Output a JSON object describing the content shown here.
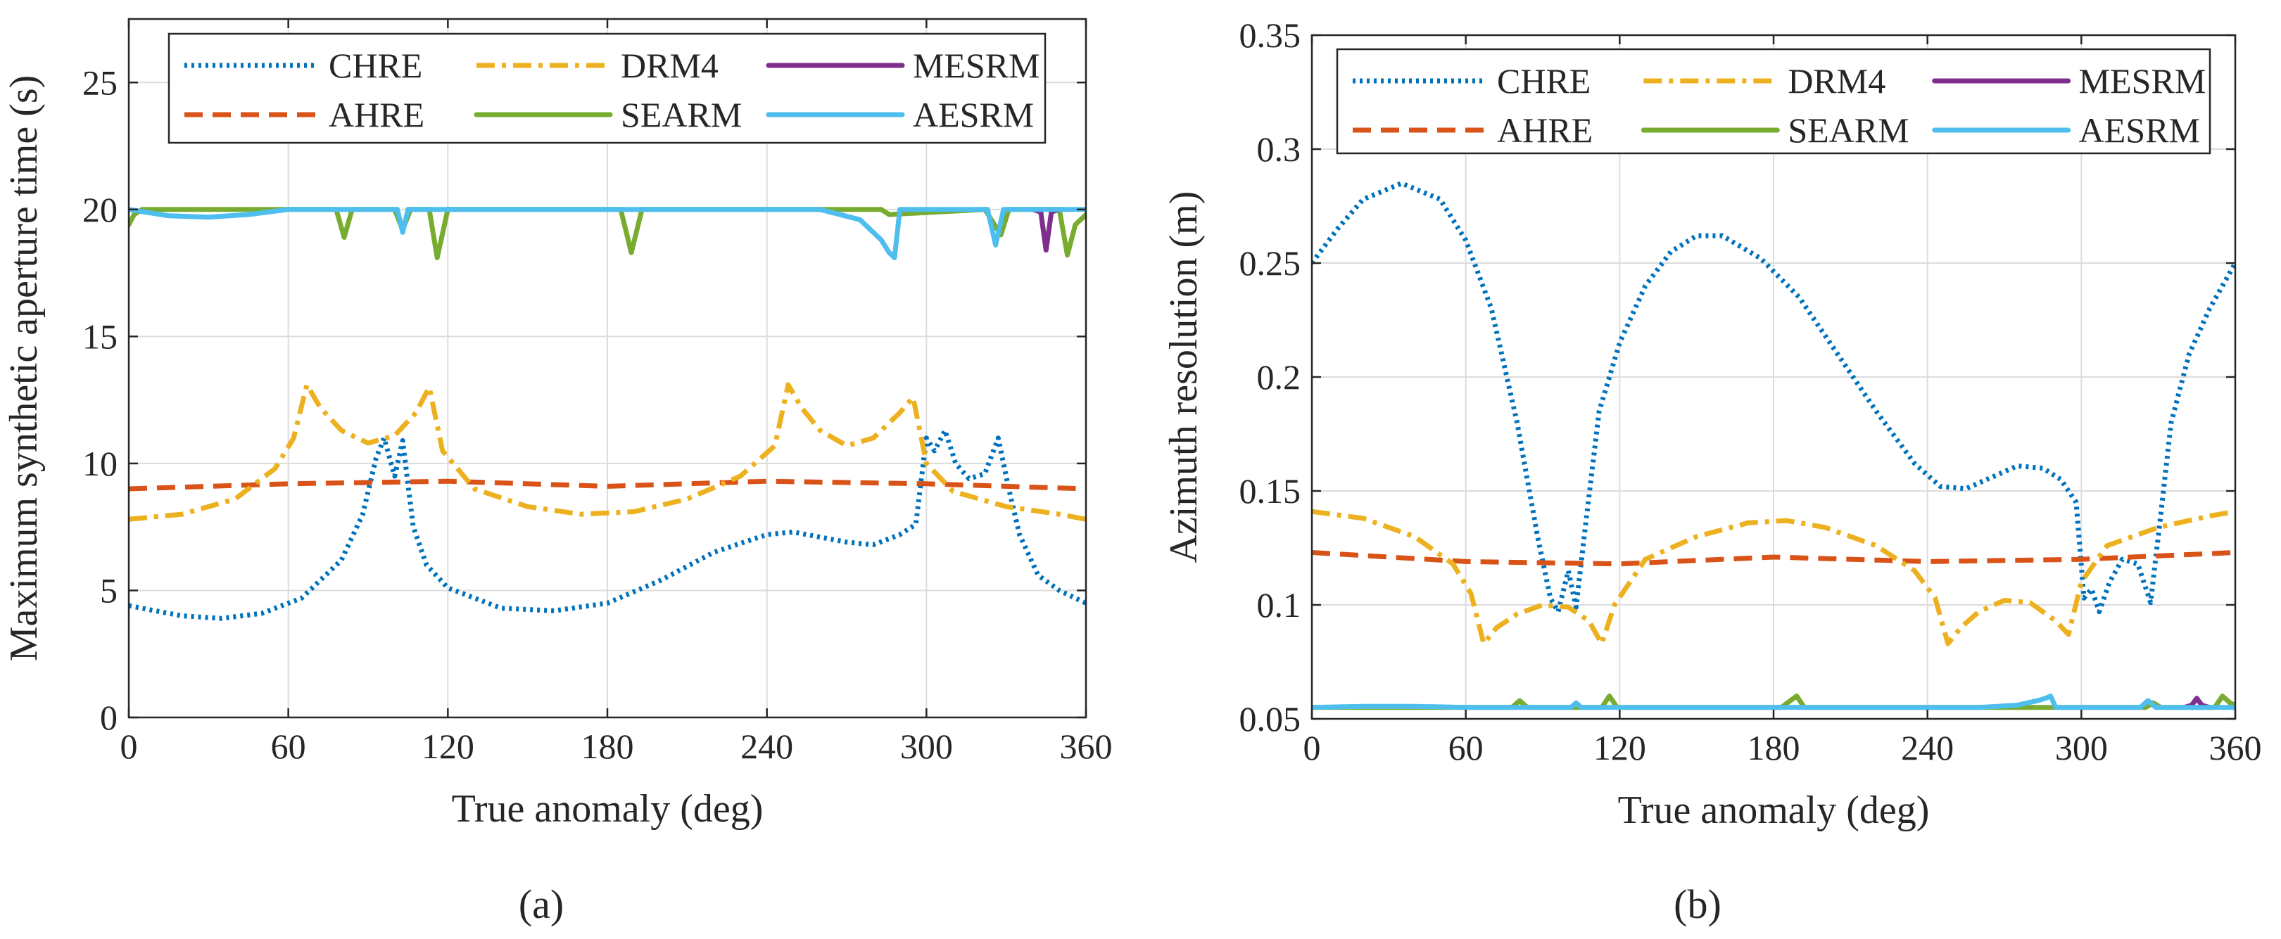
{
  "chart_data": [
    {
      "panel_label": "(a)",
      "type": "line",
      "title": "",
      "xlabel": "True anomaly (deg)",
      "ylabel": "Maximum synthetic aperture time (s)",
      "xlim": [
        0,
        360
      ],
      "ylim": [
        0,
        27.5
      ],
      "xticks": [
        0,
        60,
        120,
        180,
        240,
        300,
        360
      ],
      "yticks": [
        0,
        5,
        10,
        15,
        20,
        25
      ],
      "xtick_labels": [
        "0",
        "60",
        "120",
        "180",
        "240",
        "300",
        "360"
      ],
      "ytick_labels": [
        "0",
        "5",
        "10",
        "15",
        "20",
        "25"
      ],
      "grid": true,
      "legend_position": "top",
      "series": [
        {
          "name": "CHRE",
          "color": "#0072BD",
          "style": "dotted",
          "x": [
            0,
            20,
            35,
            50,
            65,
            80,
            88,
            93,
            96,
            100,
            103,
            107,
            112,
            120,
            140,
            160,
            180,
            200,
            220,
            240,
            250,
            260,
            270,
            280,
            290,
            296,
            300,
            303,
            307,
            311,
            316,
            322,
            327,
            331,
            335,
            342,
            350,
            360
          ],
          "y": [
            4.4,
            4.0,
            3.9,
            4.1,
            4.7,
            6.2,
            8.0,
            10.2,
            11.0,
            9.5,
            10.9,
            7.5,
            6.0,
            5.1,
            4.3,
            4.2,
            4.5,
            5.4,
            6.5,
            7.2,
            7.3,
            7.1,
            6.9,
            6.8,
            7.2,
            7.6,
            11.0,
            10.5,
            11.3,
            10.0,
            9.4,
            9.6,
            11.0,
            9.0,
            7.2,
            5.6,
            5.0,
            4.5
          ]
        },
        {
          "name": "AHRE",
          "color": "#D95319",
          "style": "dashed",
          "x": [
            0,
            60,
            120,
            180,
            240,
            300,
            360
          ],
          "y": [
            9.0,
            9.2,
            9.3,
            9.1,
            9.3,
            9.2,
            9.0
          ]
        },
        {
          "name": "DRM4",
          "color": "#EDB120",
          "style": "dashdot",
          "x": [
            0,
            20,
            40,
            55,
            62,
            67,
            72,
            80,
            90,
            100,
            108,
            113,
            118,
            130,
            150,
            170,
            190,
            210,
            230,
            243,
            248,
            253,
            260,
            270,
            280,
            290,
            295,
            300,
            310,
            330,
            350,
            360
          ],
          "y": [
            7.8,
            8.0,
            8.6,
            9.8,
            11.0,
            13.1,
            12.2,
            11.3,
            10.8,
            11.1,
            12.0,
            13.0,
            10.5,
            9.0,
            8.3,
            8.0,
            8.1,
            8.6,
            9.5,
            10.7,
            13.1,
            12.2,
            11.3,
            10.7,
            11.0,
            12.0,
            12.6,
            10.0,
            8.9,
            8.3,
            8.0,
            7.8
          ]
        },
        {
          "name": "SEARM",
          "color": "#77AC30",
          "style": "solid",
          "x": [
            0,
            2,
            5,
            30,
            55,
            60,
            78,
            81,
            84,
            100,
            103,
            106,
            113,
            116,
            120,
            185,
            189,
            193,
            270,
            283,
            286,
            322,
            328,
            331,
            350,
            353,
            356,
            360
          ],
          "y": [
            19.4,
            19.8,
            20.0,
            20.0,
            20.0,
            20.0,
            20.0,
            18.9,
            20.0,
            20.0,
            19.2,
            20.0,
            20.0,
            18.1,
            20.0,
            20.0,
            18.3,
            20.0,
            20.0,
            20.0,
            19.8,
            20.0,
            19.0,
            20.0,
            20.0,
            18.2,
            19.4,
            19.8
          ]
        },
        {
          "name": "MESRM",
          "color": "#7E2F8E",
          "style": "solid",
          "x": [
            340,
            343,
            345,
            347,
            350
          ],
          "y": [
            20.0,
            19.9,
            18.4,
            19.9,
            20.0
          ]
        },
        {
          "name": "AESRM",
          "color": "#4DBEEE",
          "style": "solid",
          "x": [
            0,
            15,
            30,
            45,
            60,
            101,
            103,
            105,
            260,
            275,
            283,
            286,
            288,
            290,
            323,
            326,
            329,
            360
          ],
          "y": [
            20.0,
            19.75,
            19.7,
            19.8,
            20.0,
            20.0,
            19.1,
            20.0,
            20.0,
            19.6,
            18.8,
            18.3,
            18.1,
            20.0,
            20.0,
            18.6,
            20.0,
            20.0
          ]
        }
      ]
    },
    {
      "panel_label": "(b)",
      "type": "line",
      "title": "",
      "xlabel": "True anomaly (deg)",
      "ylabel": "Azimuth resolution (m)",
      "xlim": [
        0,
        360
      ],
      "ylim": [
        0.05,
        0.35
      ],
      "xticks": [
        0,
        60,
        120,
        180,
        240,
        300,
        360
      ],
      "yticks": [
        0.05,
        0.1,
        0.15,
        0.2,
        0.25,
        0.3,
        0.35
      ],
      "xtick_labels": [
        "0",
        "60",
        "120",
        "180",
        "240",
        "300",
        "360"
      ],
      "ytick_labels": [
        "0.05",
        "0.1",
        "0.15",
        "0.2",
        "0.25",
        "0.3",
        "0.35"
      ],
      "grid": true,
      "legend_position": "top",
      "series": [
        {
          "name": "CHRE",
          "color": "#0072BD",
          "style": "dotted",
          "x": [
            0,
            10,
            20,
            35,
            50,
            60,
            70,
            80,
            88,
            93,
            96,
            100,
            103,
            107,
            112,
            120,
            130,
            140,
            150,
            160,
            175,
            190,
            205,
            220,
            235,
            245,
            255,
            265,
            275,
            285,
            292,
            298,
            301,
            304,
            307,
            311,
            316,
            322,
            327,
            331,
            335,
            342,
            350,
            360
          ],
          "y": [
            0.25,
            0.265,
            0.278,
            0.285,
            0.278,
            0.26,
            0.23,
            0.18,
            0.13,
            0.103,
            0.097,
            0.115,
            0.099,
            0.138,
            0.185,
            0.215,
            0.24,
            0.255,
            0.262,
            0.262,
            0.252,
            0.235,
            0.21,
            0.185,
            0.162,
            0.152,
            0.151,
            0.156,
            0.161,
            0.16,
            0.155,
            0.145,
            0.103,
            0.107,
            0.097,
            0.11,
            0.12,
            0.118,
            0.101,
            0.14,
            0.18,
            0.21,
            0.23,
            0.25
          ]
        },
        {
          "name": "AHRE",
          "color": "#D95319",
          "style": "dashed",
          "x": [
            0,
            60,
            120,
            180,
            240,
            300,
            360
          ],
          "y": [
            0.123,
            0.119,
            0.118,
            0.121,
            0.119,
            0.12,
            0.123
          ]
        },
        {
          "name": "DRM4",
          "color": "#EDB120",
          "style": "dashdot",
          "x": [
            0,
            20,
            40,
            55,
            62,
            67,
            72,
            80,
            90,
            100,
            108,
            113,
            118,
            130,
            150,
            170,
            185,
            200,
            220,
            235,
            243,
            248,
            253,
            260,
            270,
            280,
            290,
            295,
            300,
            310,
            330,
            350,
            360
          ],
          "y": [
            0.141,
            0.138,
            0.13,
            0.118,
            0.105,
            0.083,
            0.09,
            0.096,
            0.1,
            0.099,
            0.093,
            0.083,
            0.1,
            0.12,
            0.13,
            0.136,
            0.137,
            0.134,
            0.126,
            0.115,
            0.103,
            0.083,
            0.09,
            0.097,
            0.102,
            0.101,
            0.093,
            0.087,
            0.11,
            0.126,
            0.134,
            0.139,
            0.141
          ]
        },
        {
          "name": "SEARM",
          "color": "#77AC30",
          "style": "solid",
          "x": [
            0,
            60,
            78,
            81,
            84,
            113,
            116,
            119,
            183,
            189,
            192,
            325,
            328,
            331,
            352,
            355,
            358,
            360
          ],
          "y": [
            0.055,
            0.055,
            0.055,
            0.058,
            0.055,
            0.055,
            0.06,
            0.055,
            0.055,
            0.06,
            0.055,
            0.055,
            0.057,
            0.055,
            0.055,
            0.06,
            0.057,
            0.056
          ]
        },
        {
          "name": "MESRM",
          "color": "#7E2F8E",
          "style": "solid",
          "x": [
            340,
            343,
            345,
            347,
            350
          ],
          "y": [
            0.055,
            0.056,
            0.059,
            0.056,
            0.055
          ]
        },
        {
          "name": "AESRM",
          "color": "#4DBEEE",
          "style": "solid",
          "x": [
            0,
            20,
            40,
            60,
            101,
            103,
            105,
            260,
            275,
            283,
            286,
            288,
            290,
            323,
            326,
            329,
            360
          ],
          "y": [
            0.055,
            0.0555,
            0.0555,
            0.055,
            0.055,
            0.057,
            0.055,
            0.055,
            0.056,
            0.058,
            0.059,
            0.06,
            0.055,
            0.055,
            0.058,
            0.055,
            0.055
          ]
        }
      ]
    }
  ]
}
